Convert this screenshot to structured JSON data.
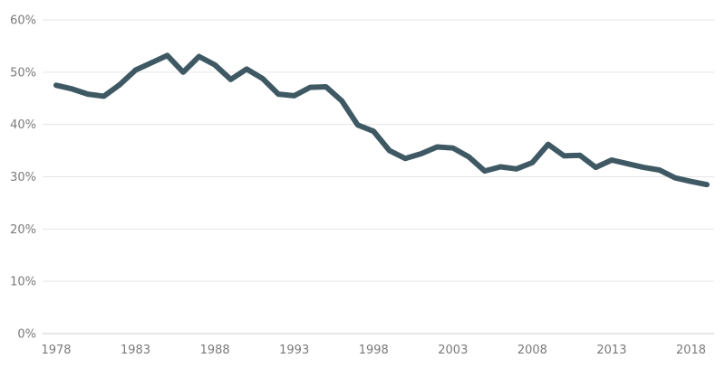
{
  "chart_data": {
    "type": "line",
    "title": "",
    "xlabel": "",
    "ylabel": "",
    "x": [
      1978,
      1979,
      1980,
      1981,
      1982,
      1983,
      1984,
      1985,
      1986,
      1987,
      1988,
      1989,
      1990,
      1991,
      1992,
      1993,
      1994,
      1995,
      1996,
      1997,
      1998,
      1999,
      2000,
      2001,
      2002,
      2003,
      2004,
      2005,
      2006,
      2007,
      2008,
      2009,
      2010,
      2011,
      2012,
      2013,
      2014,
      2015,
      2016,
      2017,
      2018,
      2019
    ],
    "series": [
      {
        "color": "#3f5964",
        "values": [
          47.5,
          46.8,
          45.8,
          45.4,
          47.6,
          50.4,
          51.8,
          53.2,
          50.0,
          53.0,
          51.4,
          48.6,
          50.6,
          48.8,
          45.8,
          45.5,
          47.1,
          47.2,
          44.5,
          39.9,
          38.7,
          35.0,
          33.5,
          34.4,
          35.7,
          35.5,
          33.8,
          31.1,
          31.9,
          31.5,
          32.7,
          36.2,
          34.0,
          34.1,
          31.8,
          33.2,
          32.5,
          31.8,
          31.3,
          29.8,
          29.1,
          28.5
        ]
      }
    ],
    "ylim": [
      0,
      60
    ],
    "y_ticks": [
      0,
      10,
      20,
      30,
      40,
      50,
      60
    ],
    "y_tick_labels": [
      "0%",
      "10%",
      "20%",
      "30%",
      "40%",
      "50%",
      "60%"
    ],
    "x_ticks": [
      1978,
      1983,
      1988,
      1993,
      1998,
      2003,
      2008,
      2013,
      2018
    ],
    "x_tick_labels": [
      "1978",
      "1983",
      "1988",
      "1993",
      "1998",
      "2003",
      "2008",
      "2013",
      "2018"
    ],
    "grid": true,
    "legend": "none"
  }
}
